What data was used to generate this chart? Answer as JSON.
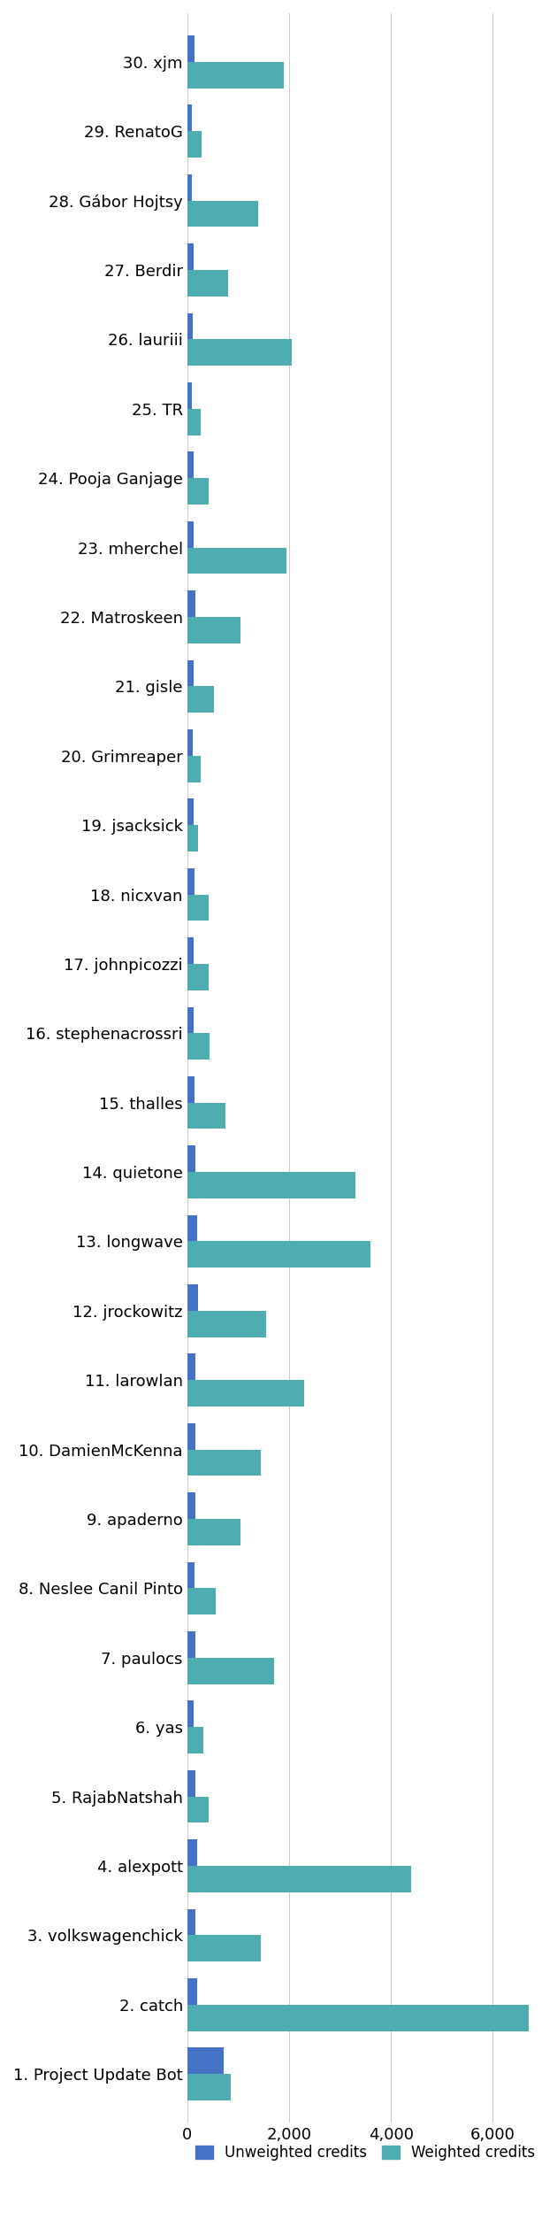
{
  "labels": [
    "30. xjm",
    "29. RenatoG",
    "28. Gábor Hojtsy",
    "27. Berdir",
    "26. lauriii",
    "25. TR",
    "24. Pooja Ganjage",
    "23. mherchel",
    "22. Matroskeen",
    "21. gisle",
    "20. Grimreaper",
    "19. jsacksick",
    "18. nicxvan",
    "17. johnpicozzi",
    "16. stephenacrossri",
    "15. thalles",
    "14. quietone",
    "13. longwave",
    "12. jrockowitz",
    "11. larowlan",
    "10. DamienMcKenna",
    "9. apaderno",
    "8. Neslee Canil Pinto",
    "7. paulocs",
    "6. yas",
    "5. RajabNatshah",
    "4. alexpott",
    "3. volkswagenchick",
    "2. catch",
    "1. Project Update Bot"
  ],
  "unweighted": [
    150,
    100,
    100,
    120,
    110,
    100,
    130,
    130,
    160,
    130,
    110,
    120,
    140,
    130,
    130,
    145,
    165,
    190,
    220,
    170,
    170,
    165,
    145,
    155,
    130,
    155,
    205,
    160,
    200,
    720
  ],
  "weighted": [
    1900,
    290,
    1400,
    800,
    2050,
    260,
    430,
    1950,
    1050,
    530,
    270,
    220,
    430,
    430,
    440,
    750,
    3300,
    3600,
    1550,
    2300,
    1450,
    1050,
    560,
    1700,
    320,
    430,
    4400,
    1450,
    6700,
    850
  ],
  "unweighted_color": "#4472c4",
  "weighted_color": "#4eadb0",
  "background_color": "#ffffff",
  "xlim": [
    0,
    7000
  ],
  "xticks": [
    0,
    2000,
    4000,
    6000
  ],
  "xtick_labels": [
    "0",
    "2,000",
    "4,000",
    "6,000"
  ],
  "legend_labels": [
    "Unweighted credits",
    "Weighted credits"
  ],
  "bar_height": 0.38,
  "figwidth": 6.3,
  "figheight": 25.16,
  "label_fontsize": 13,
  "tick_fontsize": 13
}
